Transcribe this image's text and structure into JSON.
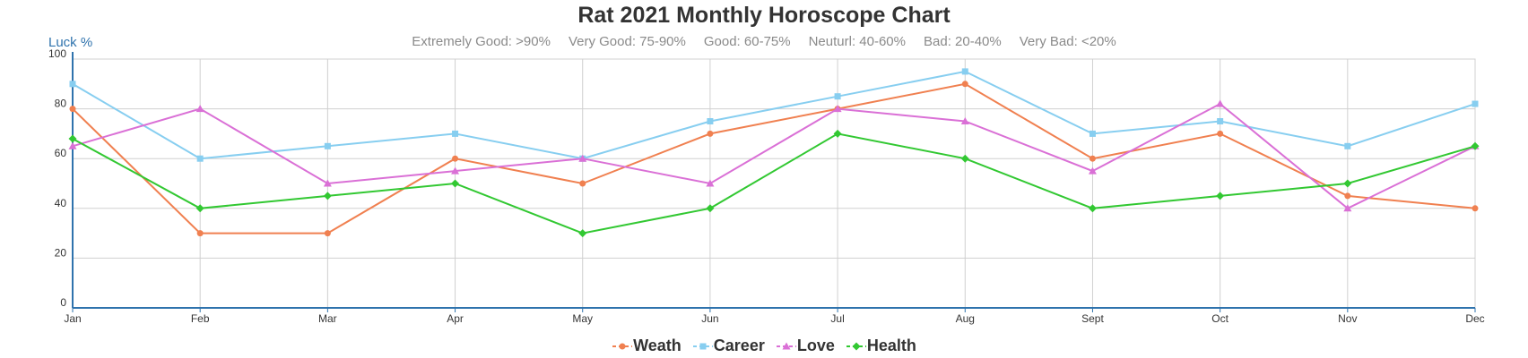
{
  "chart_data": {
    "type": "line",
    "title": "Rat 2021 Monthly Horoscope Chart",
    "subtitle_items": [
      "Extremely Good: >90%",
      "Very Good: 75-90%",
      "Good: 60-75%",
      "Neuturl: 40-60%",
      "Bad: 20-40%",
      "Very Bad: <20%"
    ],
    "ylabel": "Luck %",
    "xlabel": "",
    "categories": [
      "Jan",
      "Feb",
      "Mar",
      "Apr",
      "May",
      "Jun",
      "Jul",
      "Aug",
      "Sept",
      "Oct",
      "Nov",
      "Dec"
    ],
    "ylim": [
      0,
      100
    ],
    "yticks": [
      0,
      20,
      40,
      60,
      80,
      100
    ],
    "grid": true,
    "legend_position": "bottom",
    "series": [
      {
        "name": "Weath",
        "color": "#f08050",
        "marker": "circle",
        "values": [
          80,
          30,
          30,
          60,
          50,
          70,
          80,
          90,
          60,
          70,
          45,
          40
        ]
      },
      {
        "name": "Career",
        "color": "#87cef0",
        "marker": "square",
        "values": [
          90,
          60,
          65,
          70,
          60,
          75,
          85,
          95,
          70,
          75,
          65,
          82
        ]
      },
      {
        "name": "Love",
        "color": "#da70d6",
        "marker": "triangle",
        "values": [
          65,
          80,
          50,
          55,
          60,
          50,
          80,
          75,
          55,
          82,
          40,
          65
        ]
      },
      {
        "name": "Health",
        "color": "#32c832",
        "marker": "diamond",
        "values": [
          68,
          40,
          45,
          50,
          30,
          40,
          70,
          60,
          40,
          45,
          50,
          65
        ]
      }
    ]
  }
}
